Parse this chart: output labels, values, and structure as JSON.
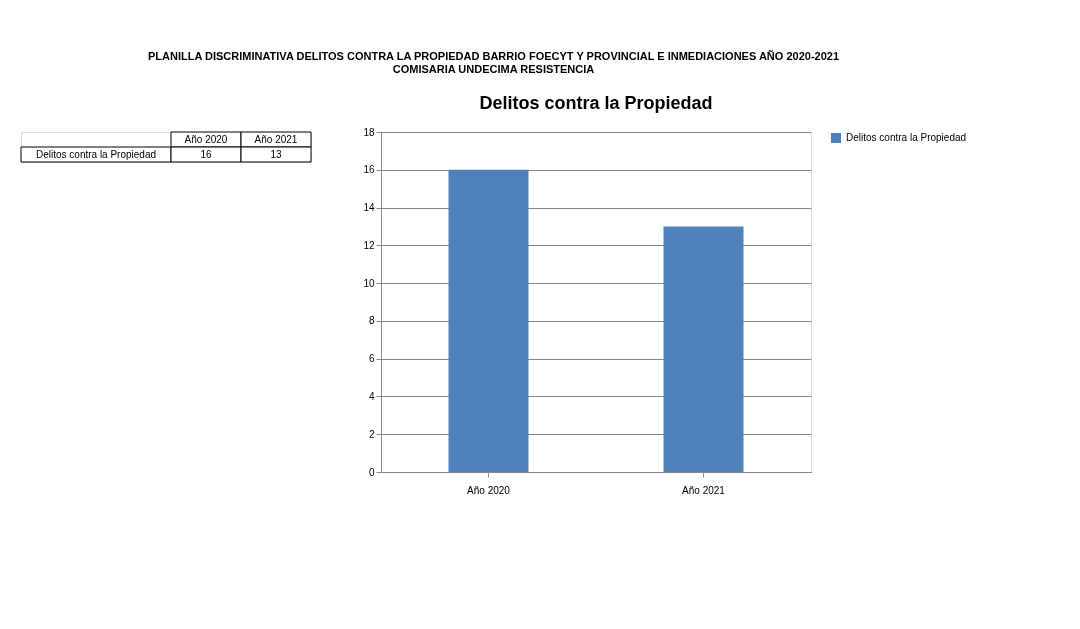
{
  "chart_data": [
    {
      "type": "other",
      "categories": [
        "Año 2020",
        "Año 2021"
      ],
      "series": [
        {
          "name": "Delitos contra la Propiedad",
          "values": [
            16,
            13
          ]
        }
      ],
      "data_labels": true
    },
    {
      "type": "bar",
      "title": "Delitos contra la Propiedad",
      "annotations": [
        "PLANILLA DISCRIMINATIVA DELITOS CONTRA LA PROPIEDAD BARRIO FOECYT Y PROVINCIAL E INMEDIACIONES AÑO 2020-2021",
        "COMISARIA UNDECIMA RESISTENCIA"
      ],
      "categories": [
        "Año 2020",
        "Año 2021"
      ],
      "series": [
        {
          "name": "Delitos contra la Propiedad",
          "color": "#4f81bd",
          "values": [
            16,
            13
          ]
        }
      ],
      "ylim": [
        0,
        18
      ],
      "yticks": [
        0,
        2,
        4,
        6,
        8,
        10,
        12,
        14,
        16,
        18
      ],
      "grid": "y",
      "legend": "right"
    }
  ]
}
